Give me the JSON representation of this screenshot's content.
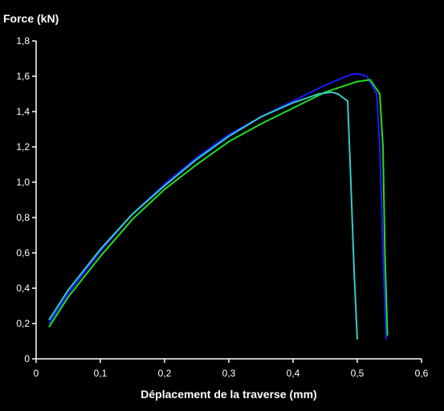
{
  "chart_data": {
    "type": "line",
    "ylabel": "Force (kN)",
    "xlabel": "Déplacement de la traverse (mm)",
    "xlim": [
      0,
      0.6
    ],
    "ylim": [
      0,
      1.8
    ],
    "x_ticks": [
      "0",
      "0,1",
      "0,2",
      "0,3",
      "0,4",
      "0,5",
      "0,6"
    ],
    "y_ticks": [
      "0",
      "0,2",
      "0,4",
      "0,6",
      "0,8",
      "1,0",
      "1,2",
      "1,4",
      "1,6",
      "1,8"
    ],
    "grid": false,
    "legend": "none",
    "background": "#000000",
    "axis_color": "#ffffff",
    "series": [
      {
        "color": "#1a1aff",
        "points": [
          [
            0.02,
            0.2
          ],
          [
            0.05,
            0.37
          ],
          [
            0.1,
            0.61
          ],
          [
            0.15,
            0.82
          ],
          [
            0.2,
            0.99
          ],
          [
            0.25,
            1.14
          ],
          [
            0.3,
            1.27
          ],
          [
            0.35,
            1.37
          ],
          [
            0.4,
            1.46
          ],
          [
            0.45,
            1.55
          ],
          [
            0.49,
            1.61
          ],
          [
            0.5,
            1.615
          ],
          [
            0.515,
            1.6
          ],
          [
            0.53,
            1.5
          ],
          [
            0.535,
            1.2
          ],
          [
            0.54,
            0.6
          ],
          [
            0.545,
            0.11
          ]
        ]
      },
      {
        "color": "#22dd22",
        "points": [
          [
            0.02,
            0.18
          ],
          [
            0.05,
            0.35
          ],
          [
            0.1,
            0.58
          ],
          [
            0.15,
            0.79
          ],
          [
            0.2,
            0.96
          ],
          [
            0.25,
            1.1
          ],
          [
            0.3,
            1.23
          ],
          [
            0.35,
            1.33
          ],
          [
            0.4,
            1.42
          ],
          [
            0.45,
            1.51
          ],
          [
            0.5,
            1.57
          ],
          [
            0.52,
            1.58
          ],
          [
            0.535,
            1.5
          ],
          [
            0.54,
            1.2
          ],
          [
            0.543,
            0.6
          ],
          [
            0.547,
            0.13
          ]
        ]
      },
      {
        "color": "#33cccc",
        "points": [
          [
            0.02,
            0.22
          ],
          [
            0.05,
            0.39
          ],
          [
            0.1,
            0.62
          ],
          [
            0.15,
            0.82
          ],
          [
            0.2,
            0.98
          ],
          [
            0.25,
            1.13
          ],
          [
            0.3,
            1.26
          ],
          [
            0.35,
            1.37
          ],
          [
            0.4,
            1.45
          ],
          [
            0.44,
            1.5
          ],
          [
            0.46,
            1.51
          ],
          [
            0.47,
            1.5
          ],
          [
            0.485,
            1.46
          ],
          [
            0.49,
            1.0
          ],
          [
            0.495,
            0.5
          ],
          [
            0.5,
            0.11
          ]
        ]
      }
    ]
  }
}
